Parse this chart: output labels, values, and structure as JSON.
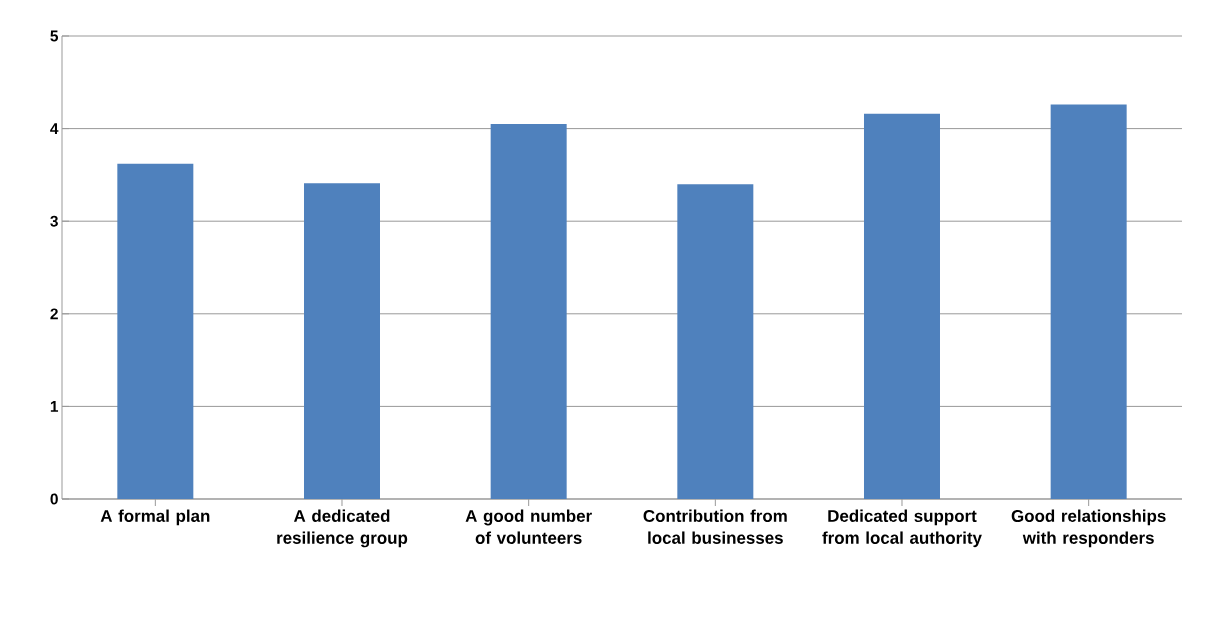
{
  "chart_data": {
    "type": "bar",
    "categories": [
      "A formal plan",
      "A dedicated resilience group",
      "A good number of volunteers",
      "Contribution from local businesses",
      "Dedicated support from local authority",
      "Good relationships with responders"
    ],
    "values": [
      3.62,
      3.41,
      4.05,
      3.4,
      4.16,
      4.26
    ],
    "color": "#4f81bd",
    "ylim": [
      0,
      5
    ],
    "yticks": [
      0,
      1,
      2,
      3,
      4,
      5
    ],
    "grid": "y"
  }
}
